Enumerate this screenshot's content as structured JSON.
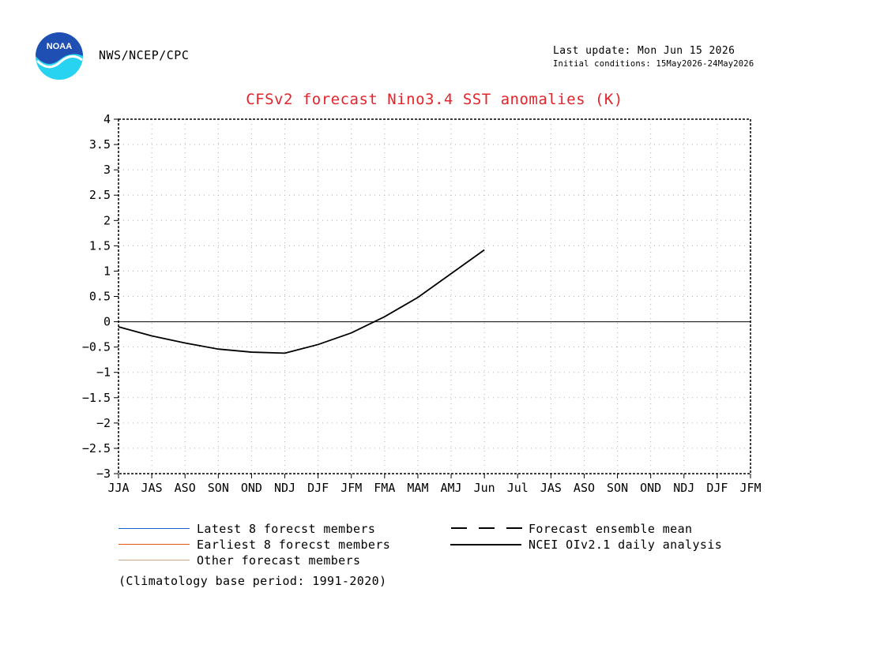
{
  "header": {
    "agency": "NWS/NCEP/CPC",
    "last_update": "Last update: Mon Jun 15 2026",
    "initial_conditions": "Initial conditions: 15May2026-24May2026",
    "logo_text": "NOAA"
  },
  "colors": {
    "title": "#e3242b",
    "latest_members": "#1f5fd6",
    "earliest_members": "#e8531e",
    "other_members": "#c9a98a",
    "analysis": "#000000",
    "logo_blue": "#1f4fb3",
    "logo_cyan": "#27d3f0"
  },
  "legend": {
    "latest": "Latest 8 forecst members",
    "earliest": "Earliest 8 forecst members",
    "other": "Other forecast members",
    "ensemble_mean": "Forecast ensemble mean",
    "analysis": "NCEI OIv2.1 daily analysis",
    "climatology": "(Climatology base period: 1991-2020)"
  },
  "chart_data": {
    "type": "line",
    "title": "CFSv2 forecast Nino3.4 SST anomalies (K)",
    "x_tick_labels": [
      "JJA",
      "JAS",
      "ASO",
      "SON",
      "OND",
      "NDJ",
      "DJF",
      "JFM",
      "FMA",
      "MAM",
      "AMJ",
      "Jun",
      "Jul",
      "JAS",
      "ASO",
      "SON",
      "OND",
      "NDJ",
      "DJF",
      "JFM"
    ],
    "y_tick_labels": [
      "4",
      "3.5",
      "3",
      "2.5",
      "2",
      "1.5",
      "1",
      "0.5",
      "0",
      "-0.5",
      "-1",
      "-1.5",
      "-2",
      "-2.5",
      "-3"
    ],
    "ylim": [
      -3,
      4
    ],
    "grid": true,
    "zero_line": true,
    "series": [
      {
        "name": "NCEI OIv2.1 daily analysis",
        "style": "solid",
        "x": [
          "JJA",
          "JAS",
          "ASO",
          "SON",
          "OND",
          "NDJ",
          "DJF",
          "JFM",
          "FMA",
          "MAM",
          "AMJ",
          "Jun"
        ],
        "values": [
          -0.1,
          -0.28,
          -0.42,
          -0.54,
          -0.6,
          -0.62,
          -0.45,
          -0.22,
          0.1,
          0.48,
          0.95,
          1.42
        ]
      }
    ]
  }
}
